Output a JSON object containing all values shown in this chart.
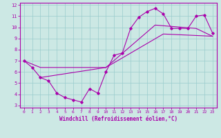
{
  "xlabel": "Windchill (Refroidissement éolien,°C)",
  "bg_color": "#cce8e4",
  "line_color": "#aa00aa",
  "grid_color": "#99cccc",
  "axes_color": "#8800aa",
  "xlim": [
    -0.5,
    23.5
  ],
  "ylim": [
    2.8,
    12.2
  ],
  "xticks": [
    0,
    1,
    2,
    3,
    4,
    5,
    6,
    7,
    8,
    9,
    10,
    11,
    12,
    13,
    14,
    15,
    16,
    17,
    18,
    19,
    20,
    21,
    22,
    23
  ],
  "yticks": [
    3,
    4,
    5,
    6,
    7,
    8,
    9,
    10,
    11,
    12
  ],
  "line1_x": [
    0,
    1,
    2,
    3,
    4,
    5,
    6,
    7,
    8,
    9,
    10,
    11,
    12,
    13,
    14,
    15,
    16,
    17,
    18,
    19,
    20,
    21,
    22,
    23
  ],
  "line1_y": [
    7.0,
    6.4,
    5.5,
    5.2,
    4.1,
    3.7,
    3.5,
    3.3,
    4.5,
    4.1,
    6.0,
    7.5,
    7.7,
    9.9,
    10.9,
    11.4,
    11.7,
    11.2,
    9.9,
    9.9,
    9.9,
    11.0,
    11.1,
    9.5
  ],
  "line2_x": [
    0,
    2,
    10,
    16,
    21,
    23
  ],
  "line2_y": [
    7.0,
    6.4,
    6.4,
    10.2,
    9.9,
    9.2
  ],
  "line3_x": [
    2,
    10,
    17,
    23
  ],
  "line3_y": [
    5.5,
    6.4,
    9.4,
    9.2
  ]
}
